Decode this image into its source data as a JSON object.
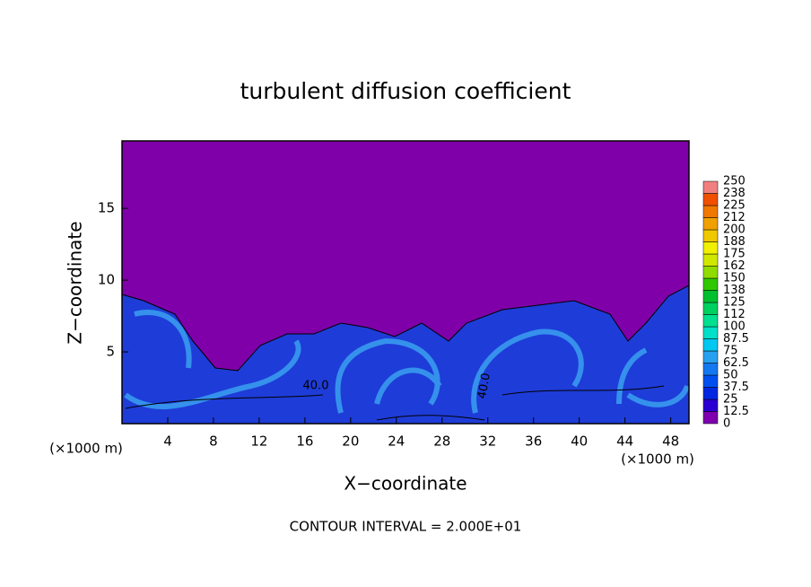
{
  "chart_data": {
    "type": "contour",
    "title": "turbulent diffusion coefficient",
    "x_label": "X−coordinate",
    "y_label": "Z−coordinate",
    "x_unit_left": "(×1000 m)",
    "x_unit_right": "(×1000 m)",
    "footer": "CONTOUR INTERVAL = 2.000E+01",
    "contour_labels": [
      "40.0",
      "40.0"
    ],
    "xlim": [
      0,
      49.6
    ],
    "ylim": [
      0,
      19.7
    ],
    "xticks": [
      4,
      8,
      12,
      16,
      20,
      24,
      28,
      32,
      36,
      40,
      44,
      48
    ],
    "yticks": [
      5,
      10,
      15
    ],
    "colorbar": {
      "levels": [
        0,
        12.5,
        25,
        37.5,
        50,
        62.5,
        75,
        87.5,
        100,
        112,
        125,
        138,
        150,
        162,
        175,
        188,
        200,
        212,
        225,
        238,
        250
      ],
      "colors": [
        "#7e00ae",
        "#2a00d2",
        "#0028e0",
        "#0050f0",
        "#1478f0",
        "#28a0f0",
        "#00c8f0",
        "#00e0c8",
        "#00e090",
        "#00d060",
        "#00c030",
        "#30c800",
        "#90dc00",
        "#d0e800",
        "#f0f000",
        "#f0c800",
        "#f0a000",
        "#f07800",
        "#f05000",
        "#f08080"
      ]
    }
  }
}
